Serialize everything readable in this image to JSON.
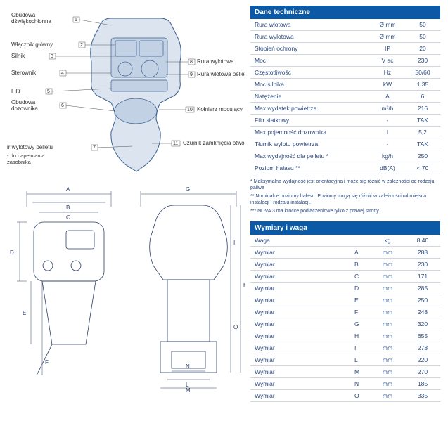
{
  "tech_table": {
    "header": "Dane techniczne",
    "rows": [
      {
        "name": "Rura wlotowa",
        "unit": "Ø mm",
        "val": "50"
      },
      {
        "name": "Rura wylotowa",
        "unit": "Ø mm",
        "val": "50"
      },
      {
        "name": "Stopień ochrony",
        "unit": "IP",
        "val": "20"
      },
      {
        "name": "Moc",
        "unit": "V ac",
        "val": "230"
      },
      {
        "name": "Częstotliwość",
        "unit": "Hz",
        "val": "50/60"
      },
      {
        "name": "Moc silnika",
        "unit": "kW",
        "val": "1,35"
      },
      {
        "name": "Natężenie",
        "unit": "A",
        "val": "6"
      },
      {
        "name": "Max wydatek powietrza",
        "unit": "m³/h",
        "val": "216"
      },
      {
        "name": "Filtr siatkowy",
        "unit": "-",
        "val": "TAK"
      },
      {
        "name": "Max pojemność dozownika",
        "unit": "l",
        "val": "5,2"
      },
      {
        "name": "Tłumik wylotu powietrza",
        "unit": "-",
        "val": "TAK"
      },
      {
        "name": "Max wydajność dla pelletu *",
        "unit": "kg/h",
        "val": "250"
      },
      {
        "name": "Poziom hałasu **",
        "unit": "dB(A)",
        "val": "< 70"
      }
    ]
  },
  "footnotes": {
    "n1": "*   Maksymalna wydajność jest orientacyjna i może się różnić w zależności od rodzaju paliwa",
    "n2": "**  Nominalne poziomy hałasu. Poziomy mogą się różnić w zależności od miejsca instalacji i rodzaju instalacji.",
    "n3": "*** NOVA 3 ma króćce podłączeniowe tylko z prawej strony"
  },
  "dims_table": {
    "header": "Wymiary i waga",
    "rows": [
      {
        "name": "Waga",
        "letter": "",
        "unit": "kg",
        "val": "8,40"
      },
      {
        "name": "Wymiar",
        "letter": "A",
        "unit": "mm",
        "val": "288"
      },
      {
        "name": "Wymiar",
        "letter": "B",
        "unit": "mm",
        "val": "230"
      },
      {
        "name": "Wymiar",
        "letter": "C",
        "unit": "mm",
        "val": "171"
      },
      {
        "name": "Wymiar",
        "letter": "D",
        "unit": "mm",
        "val": "285"
      },
      {
        "name": "Wymiar",
        "letter": "E",
        "unit": "mm",
        "val": "250"
      },
      {
        "name": "Wymiar",
        "letter": "F",
        "unit": "mm",
        "val": "248"
      },
      {
        "name": "Wymiar",
        "letter": "G",
        "unit": "mm",
        "val": "320"
      },
      {
        "name": "Wymiar",
        "letter": "H",
        "unit": "mm",
        "val": "655"
      },
      {
        "name": "Wymiar",
        "letter": "I",
        "unit": "mm",
        "val": "278"
      },
      {
        "name": "Wymiar",
        "letter": "L",
        "unit": "mm",
        "val": "220"
      },
      {
        "name": "Wymiar",
        "letter": "M",
        "unit": "mm",
        "val": "270"
      },
      {
        "name": "Wymiar",
        "letter": "N",
        "unit": "mm",
        "val": "185"
      },
      {
        "name": "Wymiar",
        "letter": "O",
        "unit": "mm",
        "val": "335"
      }
    ]
  },
  "callouts": {
    "c1": {
      "num": "1",
      "label": "Obudowa\ndźwiękochłonna"
    },
    "c2": {
      "num": "2",
      "label": "Włącznik główny"
    },
    "c3": {
      "num": "3",
      "label": "Silnik"
    },
    "c4": {
      "num": "4",
      "label": "Sterownik"
    },
    "c5": {
      "num": "5",
      "label": "Filtr"
    },
    "c6": {
      "num": "6",
      "label": "Obudowa\ndozownika"
    },
    "c7": {
      "num": "7",
      "label": "ir wylotowy pelletu",
      "sub": "- do napełniania\nzasobnika"
    },
    "c8": {
      "num": "8",
      "label": "Rura wylotowa"
    },
    "c9": {
      "num": "9",
      "label": "Rura wlotowa pelletu"
    },
    "c10": {
      "num": "10",
      "label": "Kołnierz mocujący"
    },
    "c11": {
      "num": "11",
      "label": "Czujnik zamknięcia otworu"
    }
  },
  "dim_letters": {
    "A": "A",
    "B": "B",
    "C": "C",
    "D": "D",
    "E": "E",
    "F": "F",
    "G": "G",
    "H": "H",
    "I": "I",
    "L": "L",
    "M": "M",
    "N": "N",
    "O": "O"
  },
  "style": {
    "brand_color": "#0c5aa6",
    "line_color": "#2b4a7d",
    "shape_fill": "#dbe4ef",
    "shape_stroke": "#3a5f8f"
  }
}
